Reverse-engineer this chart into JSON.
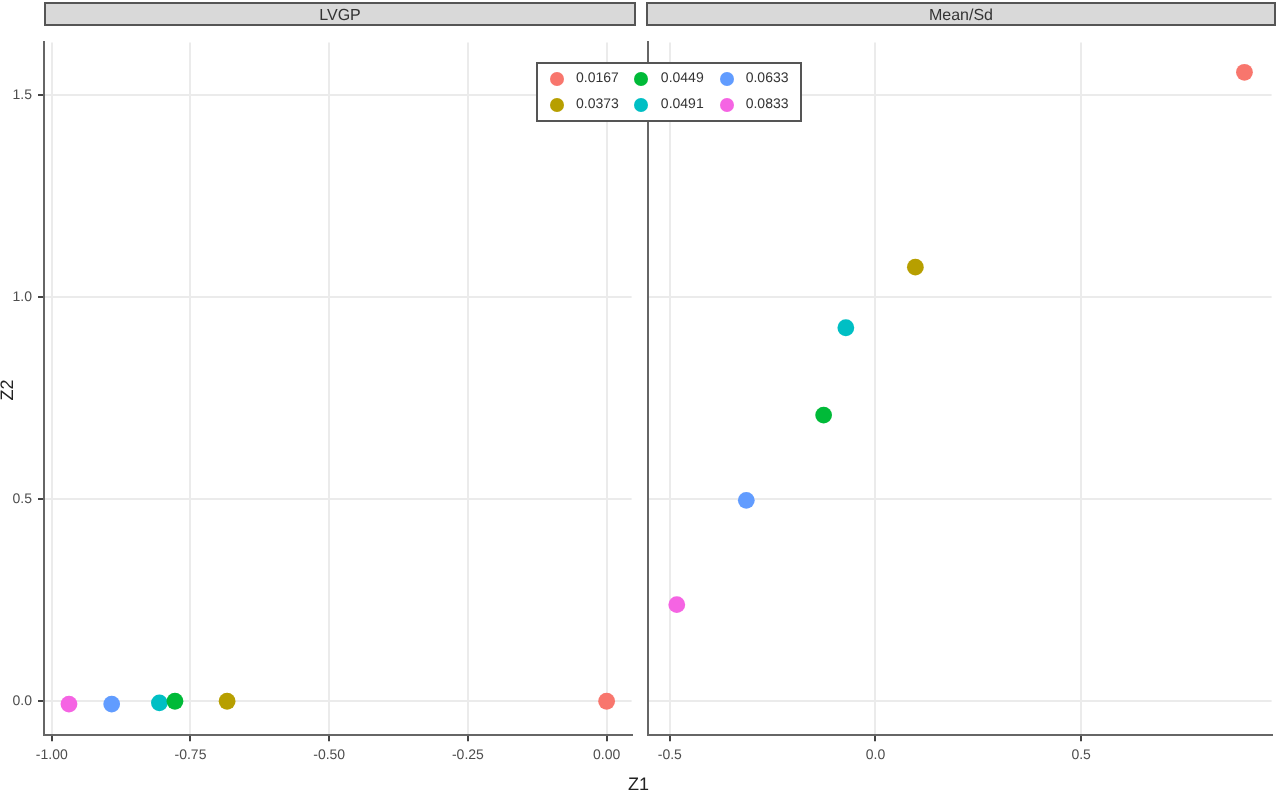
{
  "chart_data": [
    {
      "type": "scatter",
      "title": "LVGP",
      "xlabel": "Z1",
      "ylabel": "Z2",
      "xlim": [
        -1.014,
        0.045
      ],
      "ylim": [
        -0.084,
        1.63
      ],
      "xticks": [
        {
          "value": -1,
          "label": "-1.00"
        },
        {
          "value": -0.75,
          "label": "-0.75"
        },
        {
          "value": -0.5,
          "label": "-0.50"
        },
        {
          "value": -0.25,
          "label": "-0.25"
        },
        {
          "value": 0,
          "label": "0.00"
        }
      ],
      "yticks": [
        {
          "value": 0,
          "label": "0.0"
        },
        {
          "value": 0.5,
          "label": "0.5"
        },
        {
          "value": 1,
          "label": "1.0"
        },
        {
          "value": 1.5,
          "label": "1.5"
        }
      ],
      "grid": true,
      "legend": "top right",
      "marker": "circle",
      "series": [
        {
          "name": "0.0167",
          "color": "#f8766d",
          "x": [
            0
          ],
          "values": [
            0
          ]
        },
        {
          "name": "0.0373",
          "color": "#b79f00",
          "x": [
            -0.684
          ],
          "values": [
            0
          ]
        },
        {
          "name": "0.0449",
          "color": "#00ba38",
          "x": [
            -0.778
          ],
          "values": [
            0
          ]
        },
        {
          "name": "0.0491",
          "color": "#00bfc4",
          "x": [
            -0.806
          ],
          "values": [
            -0.004
          ]
        },
        {
          "name": "0.0633",
          "color": "#619cff",
          "x": [
            -0.892
          ],
          "values": [
            -0.007
          ]
        },
        {
          "name": "0.0833",
          "color": "#f564e3",
          "x": [
            -0.969
          ],
          "values": [
            -0.007
          ]
        }
      ]
    },
    {
      "type": "scatter",
      "title": "Mean/Sd",
      "xlim": [
        -0.552,
        0.963
      ],
      "ylim": [
        -0.084,
        1.63
      ],
      "xticks": [
        -0.5,
        {
          "value": 0,
          "label": "0.0"
        },
        0.5
      ],
      "yticks": [
        {
          "value": 0,
          "label": null
        },
        {
          "value": 0.5,
          "label": null
        },
        {
          "value": 1,
          "label": null
        },
        {
          "value": 1.5,
          "label": null
        }
      ],
      "grid": true,
      "tick_labels": "x",
      "marker": "circle",
      "series": [
        {
          "color": "#f8766d",
          "x": [
            0.897
          ],
          "values": [
            1.556
          ]
        },
        {
          "color": "#b79f00",
          "x": [
            0.097
          ],
          "values": [
            1.074
          ]
        },
        {
          "color": "#00ba38",
          "x": [
            -0.126
          ],
          "values": [
            0.708
          ]
        },
        {
          "color": "#00bfc4",
          "x": [
            -0.072
          ],
          "values": [
            0.924
          ]
        },
        {
          "color": "#619cff",
          "x": [
            -0.314
          ],
          "values": [
            0.497
          ]
        },
        {
          "color": "#f564e3",
          "x": [
            -0.483
          ],
          "values": [
            0.239
          ]
        }
      ]
    }
  ]
}
